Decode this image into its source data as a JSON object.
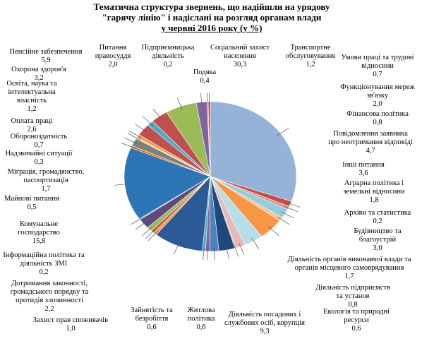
{
  "chart_data": {
    "type": "pie",
    "title": "Тематична структура звернень, що надійшли на урядову \"гарячу лінію\" і надіслані на розгляд органам влади",
    "subtitle": "у червні 2016 року (у %)",
    "categories": [
      "Соціальний захист населення",
      "Транспортне обслуговування",
      "Умови праці та трудові відносини",
      "Функціонування мереж зв'язку",
      "Фінансова політика",
      "Повідомлення заявника про неотримання відповіді",
      "Інші питання",
      "Аграрна політика і земельні відносини",
      "Архіви та статистика",
      "Будівництво та благоустрій",
      "Діяльність органів виконавчої влади та органів місцевого самоврядування",
      "Діяльність підприємств та установ",
      "Екологія та природні ресурси",
      "Діяльність посадових і службових осіб, корупція",
      "Житлова політика",
      "Зайнятість та безробіття",
      "Захист прав споживачів",
      "Дотримання законності, громадського порядку та протидія злочинності",
      "Інформаційна політика та діяльність ЗМІ",
      "Комунальне господарство",
      "Майнові питання",
      "Міграція, громадянство, паспортизація",
      "Надзвичайні ситуації",
      "Обороноздатність",
      "Оплата праці",
      "Освіта, наука та інтелектуальна власність",
      "Охорона здоров'я",
      "Пенсійне забезпечення",
      "Питання правосуддя",
      "Підприємницька діяльність",
      "Подяка"
    ],
    "values": [
      30.3,
      1.2,
      0.7,
      2.0,
      0.8,
      4.7,
      3.6,
      1.8,
      0.2,
      3.0,
      1.7,
      0.8,
      0.6,
      9.3,
      0.6,
      0.6,
      1.0,
      2.2,
      0.2,
      15.8,
      0.5,
      1.7,
      0.3,
      0.7,
      2.6,
      1.2,
      3.2,
      5.9,
      2.0,
      0.2,
      0.4
    ],
    "value_labels": [
      "30,3",
      "1,2",
      "0,7",
      "2,0",
      "0,8",
      "4,7",
      "3,6",
      "1,8",
      "0,2",
      "3,0",
      "1,7",
      "0,8",
      "0,6",
      "9,3",
      "0,6",
      "0,6",
      "1,0",
      "2,2",
      "0,2",
      "15,8",
      "0,5",
      "1,7",
      "0,3",
      "0,7",
      "2,6",
      "1,2",
      "3,2",
      "5,9",
      "2,0",
      "0,2",
      "0,4"
    ],
    "colors": [
      "#95B3D7",
      "#C0504D",
      "#D99694",
      "#93CDDD",
      "#FAC090",
      "#F79646",
      "#B7DEE8",
      "#E6B9B8",
      "#9BBB59",
      "#1F497D",
      "#4F81BD",
      "#8064A2",
      "#4BACC6",
      "#2C5A96",
      "#F79646",
      "#C0504D",
      "#9BBB59",
      "#604A7B",
      "#4BACC6",
      "#2E75B6",
      "#E46C0A",
      "#7F7F7F",
      "#C3D69B",
      "#F79646",
      "#C0504D",
      "#4BACC6",
      "#C0504D",
      "#9BBB59",
      "#8064A2",
      "#F79646",
      "#C0504D"
    ]
  }
}
